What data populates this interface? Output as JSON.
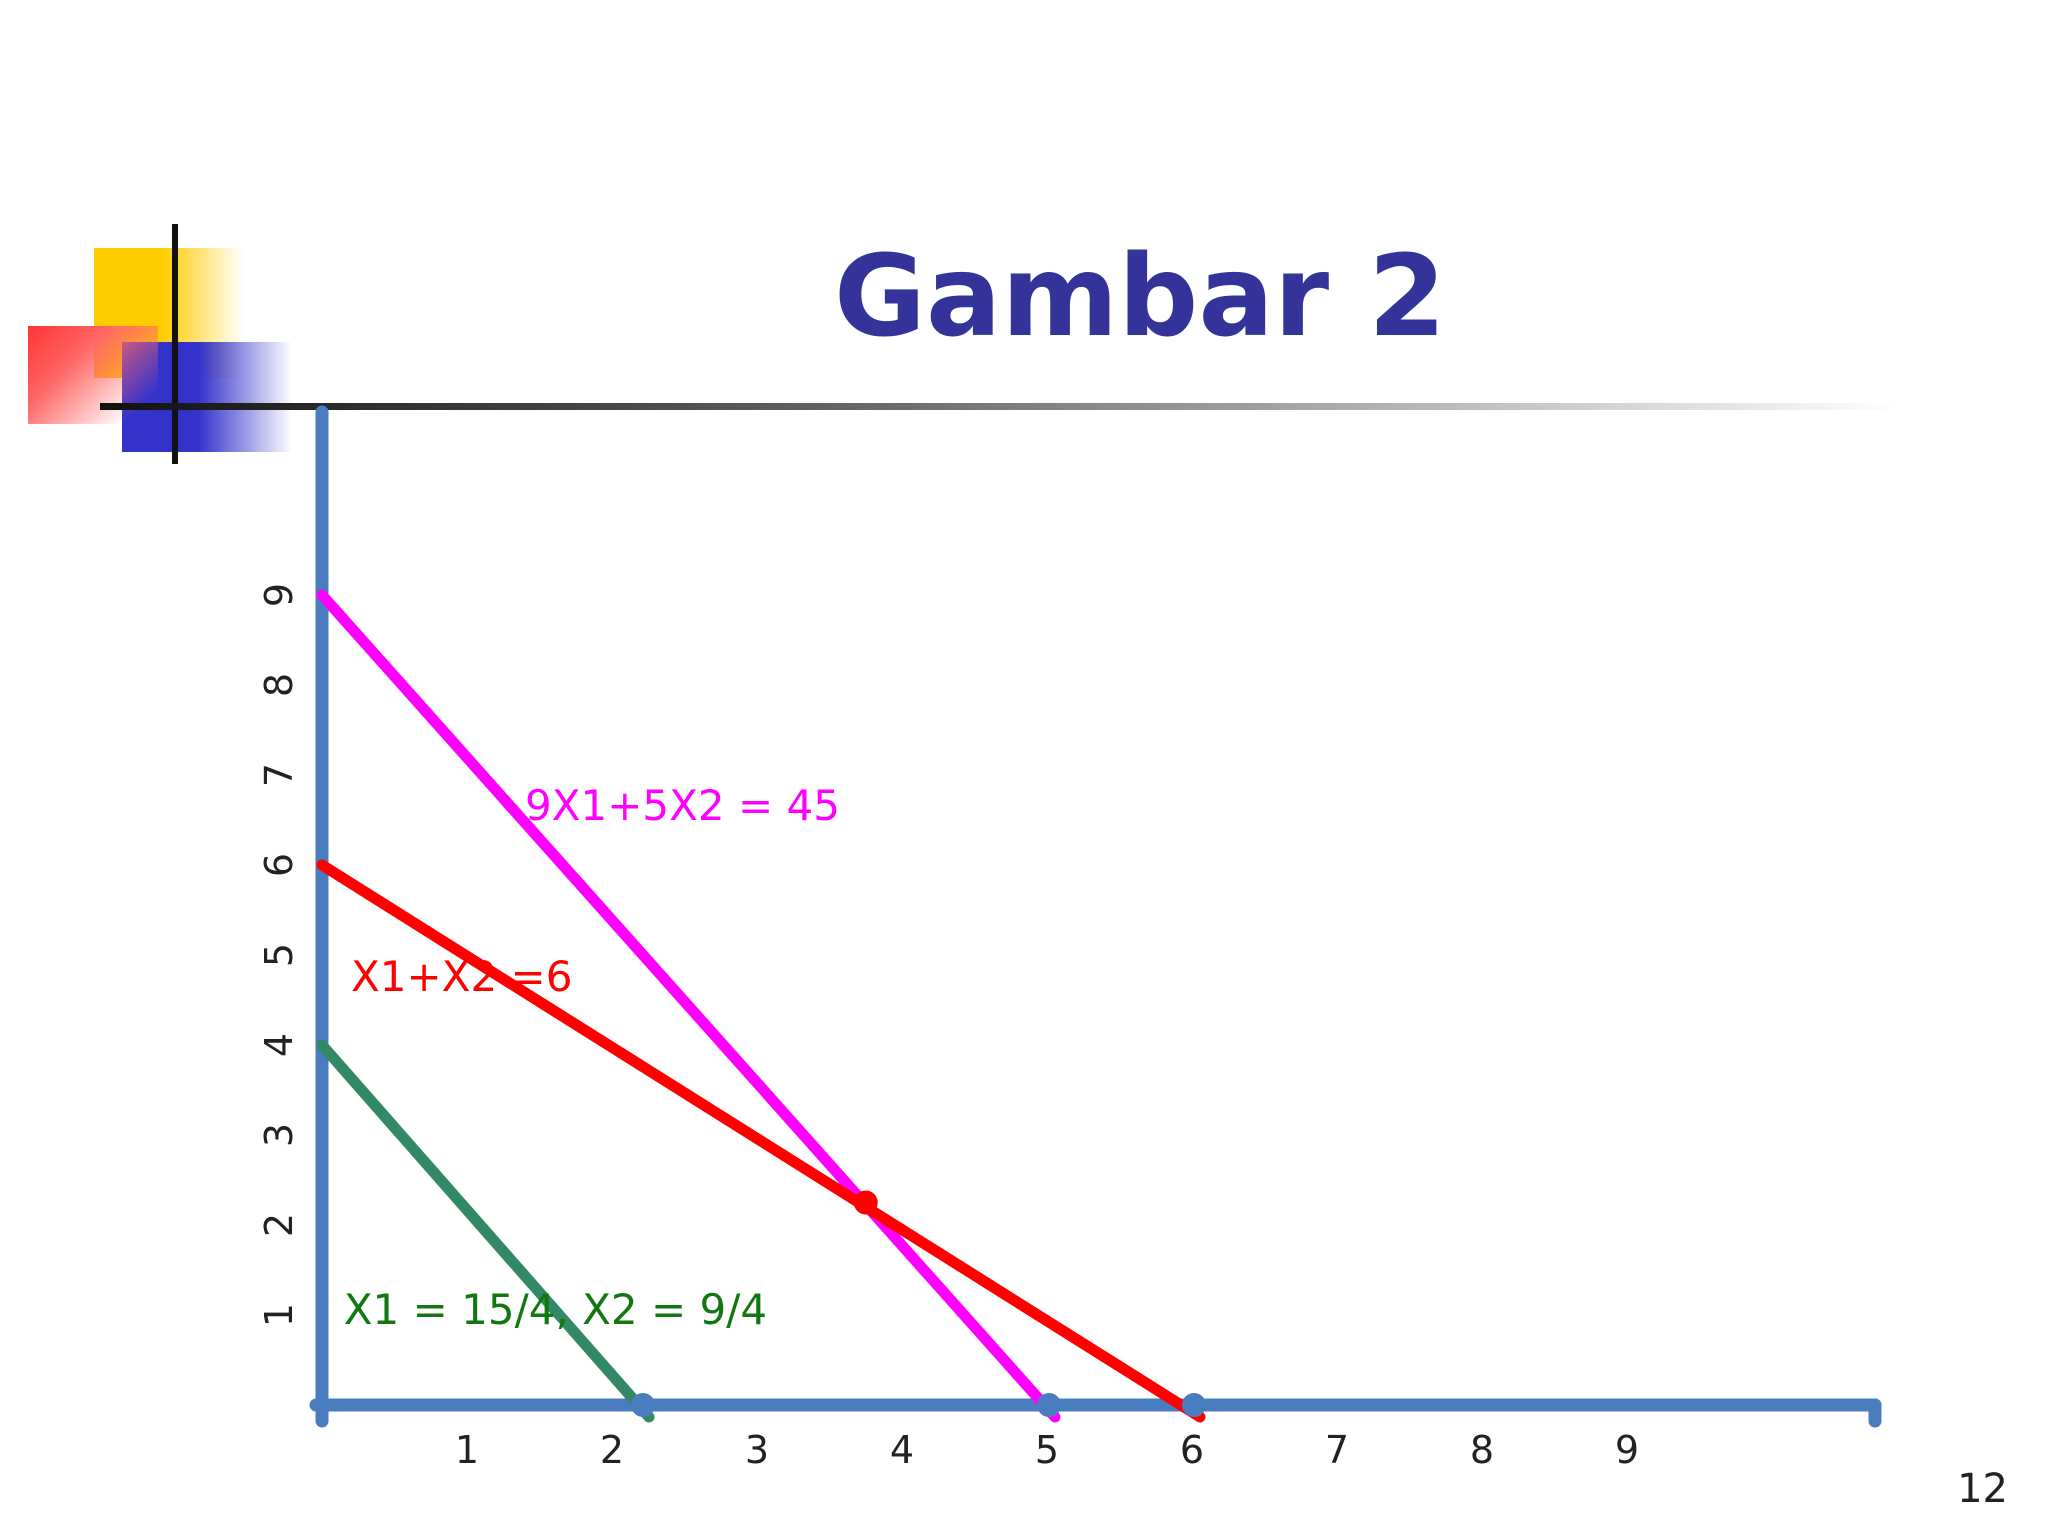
{
  "title": "Gambar 2",
  "page_number": "12",
  "colors": {
    "title": "#333399",
    "axis": "#4a7cc0",
    "line_9x1_5x2": "#ff00ff",
    "line_x1_x2": "#ff0000",
    "line_green": "#338866",
    "label_green": "#117711"
  },
  "chart_data": {
    "type": "line",
    "title": "Gambar 2",
    "xlabel": "",
    "ylabel": "",
    "xlim": [
      0,
      11
    ],
    "ylim": [
      0,
      11
    ],
    "x_ticks": [
      "1",
      "2",
      "3",
      "4",
      "5",
      "6",
      "7",
      "8",
      "9"
    ],
    "y_ticks": [
      "1",
      "2",
      "3",
      "4",
      "5",
      "6",
      "7",
      "8",
      "9"
    ],
    "grid": false,
    "series": [
      {
        "name": "9X1+5X2 = 45",
        "color": "#ff00ff",
        "points": [
          [
            0,
            9
          ],
          [
            5,
            0
          ]
        ]
      },
      {
        "name": "X1+X2 =6",
        "color": "#ff0000",
        "points": [
          [
            0,
            6
          ],
          [
            6,
            0
          ]
        ]
      },
      {
        "name": "",
        "color": "#338866",
        "points": [
          [
            0,
            4
          ],
          [
            2.2,
            0
          ]
        ]
      }
    ],
    "annotations": [
      {
        "text": "9X1+5X2 = 45",
        "color": "#ff00ff",
        "x": 1.4,
        "y": 6.5
      },
      {
        "text": "X1+X2 =6",
        "color": "#ff0000",
        "x": 0.2,
        "y": 4.6
      },
      {
        "text": "X1 = 15/4, X2 = 9/4",
        "color": "#117711",
        "x": 0.15,
        "y": 0.9
      }
    ],
    "intersection": {
      "x": 3.75,
      "y": 2.25
    }
  }
}
